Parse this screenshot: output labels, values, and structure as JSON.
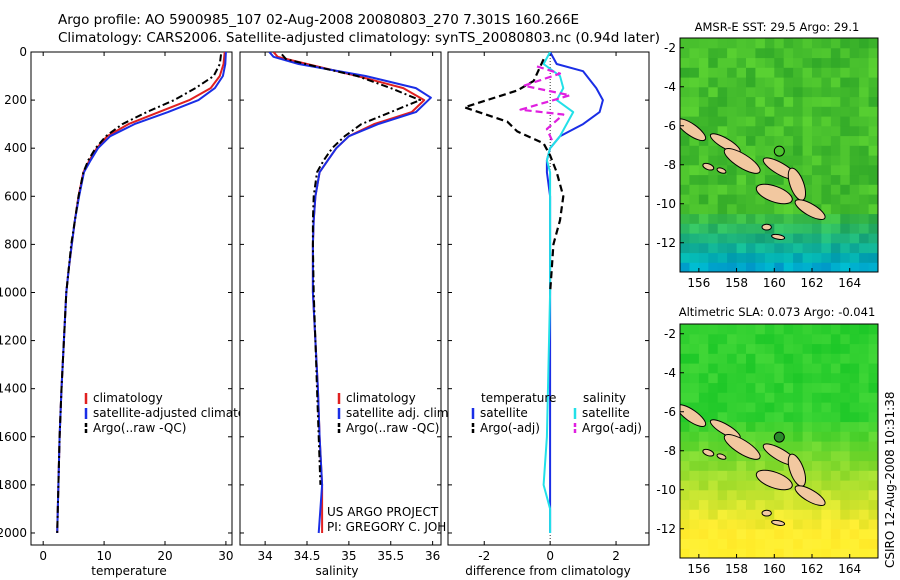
{
  "header": {
    "line1": "Argo profile: AO 5900985_107 02-Aug-2008 20080803_270 7.301S 160.266E",
    "line2": "Climatology: CARS2006. Satellite-adjusted climatology: synTS_20080803.nc (0.94d later)"
  },
  "credit": "CSIRO 12-Aug-2008 10:31:38",
  "project": {
    "line1": "US ARGO PROJECT",
    "line2": "PI: GREGORY C. JOHNSON"
  },
  "colors": {
    "climatology": "#e02020",
    "satellite": "#1a2ee6",
    "argo": "#000000",
    "sal_satellite": "#22e0e8",
    "sal_argo": "#e020e0",
    "float_marker": "#2a8a2a"
  },
  "chart_data": [
    {
      "id": "temperature",
      "type": "line",
      "xlabel": "temperature",
      "ylabel": "",
      "xlim": [
        -2,
        31
      ],
      "ylim": [
        2050,
        0
      ],
      "xticks": [
        0,
        10,
        20,
        30
      ],
      "yticks": [
        0,
        200,
        400,
        600,
        800,
        1000,
        1200,
        1400,
        1600,
        1800,
        2000
      ],
      "legend_position": "lower-right",
      "series": [
        {
          "name": "climatology",
          "color": "#e02020",
          "style": "solid",
          "x": [
            29.8,
            29.6,
            29.0,
            27.5,
            24.0,
            19.0,
            14.0,
            10.5,
            8.8,
            7.6,
            6.6,
            5.8,
            5.2,
            4.7,
            4.2,
            3.8,
            3.4,
            3.0,
            2.7,
            2.5,
            2.3
          ],
          "y": [
            0,
            50,
            100,
            150,
            200,
            250,
            300,
            350,
            400,
            450,
            500,
            600,
            700,
            800,
            900,
            1000,
            1200,
            1400,
            1600,
            1800,
            2000
          ]
        },
        {
          "name": "satellite-adjusted climatology",
          "color": "#1a2ee6",
          "style": "solid",
          "x": [
            30.0,
            29.9,
            29.5,
            28.2,
            25.5,
            20.5,
            15.0,
            11.0,
            9.0,
            7.8,
            6.7,
            5.9,
            5.2,
            4.7,
            4.2,
            3.8,
            3.4,
            3.0,
            2.7,
            2.5,
            2.3
          ],
          "y": [
            0,
            50,
            100,
            150,
            200,
            250,
            300,
            350,
            400,
            450,
            500,
            600,
            700,
            800,
            900,
            1000,
            1200,
            1400,
            1600,
            1800,
            2000
          ]
        },
        {
          "name": "Argo(..raw -QC)",
          "color": "#000000",
          "style": "dashdot",
          "x": [
            29.2,
            29.0,
            28.0,
            25.0,
            21.5,
            17.0,
            13.0,
            10.3,
            8.6,
            7.4,
            6.6,
            5.8,
            5.2,
            4.6,
            4.2,
            3.8,
            3.4,
            3.0,
            2.7,
            2.5,
            2.3
          ],
          "y": [
            10,
            50,
            100,
            150,
            200,
            250,
            300,
            350,
            400,
            450,
            500,
            600,
            700,
            800,
            900,
            1000,
            1200,
            1400,
            1600,
            1800,
            2000
          ]
        }
      ]
    },
    {
      "id": "salinity",
      "type": "line",
      "xlabel": "salinity",
      "ylabel": "",
      "xlim": [
        33.7,
        36.1
      ],
      "ylim": [
        2050,
        0
      ],
      "xticks": [
        34,
        34.5,
        35,
        35.5,
        36
      ],
      "yticks": [
        0,
        200,
        400,
        600,
        800,
        1000,
        1200,
        1400,
        1600,
        1800,
        2000
      ],
      "legend_position": "lower-right",
      "series": [
        {
          "name": "climatology",
          "color": "#e02020",
          "style": "solid",
          "x": [
            34.1,
            34.15,
            34.5,
            35.1,
            35.65,
            35.9,
            35.75,
            35.3,
            35.0,
            34.85,
            34.75,
            34.65,
            34.6,
            34.58,
            34.57,
            34.57,
            34.6,
            34.63,
            34.65,
            34.68,
            34.68,
            34.68
          ],
          "y": [
            0,
            20,
            50,
            100,
            150,
            200,
            250,
            300,
            350,
            400,
            450,
            500,
            600,
            700,
            800,
            1000,
            1200,
            1400,
            1600,
            1800,
            1900,
            2000
          ]
        },
        {
          "name": "satellite adj. clim.",
          "color": "#1a2ee6",
          "style": "solid",
          "x": [
            34.05,
            34.1,
            34.4,
            35.2,
            35.8,
            35.98,
            35.8,
            35.35,
            35.0,
            34.85,
            34.75,
            34.65,
            34.6,
            34.58,
            34.57,
            34.57,
            34.6,
            34.63,
            34.65,
            34.68,
            34.66,
            34.64
          ],
          "y": [
            0,
            20,
            50,
            100,
            150,
            190,
            250,
            300,
            350,
            400,
            450,
            500,
            600,
            700,
            800,
            1000,
            1200,
            1400,
            1600,
            1800,
            1900,
            2000
          ]
        },
        {
          "name": "Argo(..raw -QC)",
          "color": "#000000",
          "style": "dashdot",
          "x": [
            34.2,
            34.25,
            34.6,
            35.1,
            35.5,
            35.85,
            35.5,
            35.15,
            34.95,
            34.8,
            34.7,
            34.62,
            34.58,
            34.57,
            34.57,
            34.58,
            34.6,
            34.62,
            34.64,
            34.66
          ],
          "y": [
            10,
            30,
            60,
            100,
            150,
            200,
            250,
            300,
            350,
            400,
            450,
            500,
            600,
            700,
            800,
            1000,
            1200,
            1400,
            1600,
            1800
          ]
        }
      ]
    },
    {
      "id": "difference",
      "type": "line",
      "xlabel": "difference from climatology",
      "ylabel": "",
      "xlim": [
        -3.1,
        3.0
      ],
      "ylim": [
        2050,
        0
      ],
      "xticks": [
        -2,
        0,
        2
      ],
      "yticks": [
        0,
        200,
        400,
        600,
        800,
        1000,
        1200,
        1400,
        1600,
        1800,
        2000
      ],
      "legend_position": "lower-center",
      "legend_groups": [
        "temperature",
        "salinity"
      ],
      "series": [
        {
          "name": "satellite",
          "group": "temperature",
          "color": "#1a2ee6",
          "style": "solid",
          "x": [
            0.0,
            0.2,
            1.0,
            1.4,
            1.6,
            1.5,
            1.0,
            0.3,
            0.0,
            -0.1,
            -0.1,
            0.0,
            0.0,
            0.0,
            0.0,
            0.0,
            0.0,
            0.0,
            0.0
          ],
          "y": [
            0,
            50,
            80,
            150,
            200,
            250,
            300,
            350,
            400,
            450,
            500,
            600,
            700,
            800,
            1000,
            1200,
            1400,
            1600,
            2000
          ]
        },
        {
          "name": "Argo(-adj)",
          "group": "temperature",
          "color": "#000000",
          "style": "dashed",
          "x": [
            -0.2,
            -0.5,
            -1.0,
            -2.6,
            -1.3,
            -1.0,
            -0.2,
            0.0,
            0.2,
            0.4,
            0.3,
            0.1,
            0.05,
            0.0
          ],
          "y": [
            30,
            120,
            160,
            230,
            290,
            330,
            380,
            430,
            500,
            600,
            700,
            800,
            900,
            1000
          ]
        },
        {
          "name": "satellite",
          "group": "salinity",
          "color": "#22e0e8",
          "style": "solid",
          "x": [
            0.0,
            -0.2,
            0.3,
            0.4,
            0.2,
            0.7,
            0.5,
            0.3,
            0.0,
            -0.1,
            0.0,
            0.0,
            0.0,
            -0.1,
            -0.2,
            0.0,
            0.0
          ],
          "y": [
            0,
            50,
            100,
            150,
            200,
            250,
            300,
            350,
            400,
            450,
            500,
            700,
            1000,
            1600,
            1800,
            1900,
            2000
          ]
        },
        {
          "name": "Argo(-adj)",
          "group": "salinity",
          "color": "#e020e0",
          "style": "dashed",
          "x": [
            -0.4,
            0.3,
            -0.8,
            0.6,
            -0.9,
            0.4,
            -0.1,
            0.1
          ],
          "y": [
            60,
            90,
            140,
            180,
            240,
            260,
            320,
            380
          ]
        }
      ]
    },
    {
      "id": "sst-map",
      "type": "heatmap",
      "title": "AMSR-E SST: 29.5 Argo: 29.1",
      "xlim": [
        155,
        165.5
      ],
      "ylim": [
        -13.5,
        -1.5
      ],
      "xticks": [
        156,
        158,
        160,
        162,
        164
      ],
      "yticks": [
        -2,
        -4,
        -6,
        -8,
        -10,
        -12
      ],
      "float_position": {
        "lon": 160.266,
        "lat": -7.301
      }
    },
    {
      "id": "sla-map",
      "type": "heatmap",
      "title": "Altimetric SLA: 0.073 Argo: -0.041",
      "xlim": [
        155,
        165.5
      ],
      "ylim": [
        -13.5,
        -1.5
      ],
      "xticks": [
        156,
        158,
        160,
        162,
        164
      ],
      "yticks": [
        -2,
        -4,
        -6,
        -8,
        -10,
        -12
      ],
      "float_position": {
        "lon": 160.266,
        "lat": -7.301
      }
    }
  ]
}
